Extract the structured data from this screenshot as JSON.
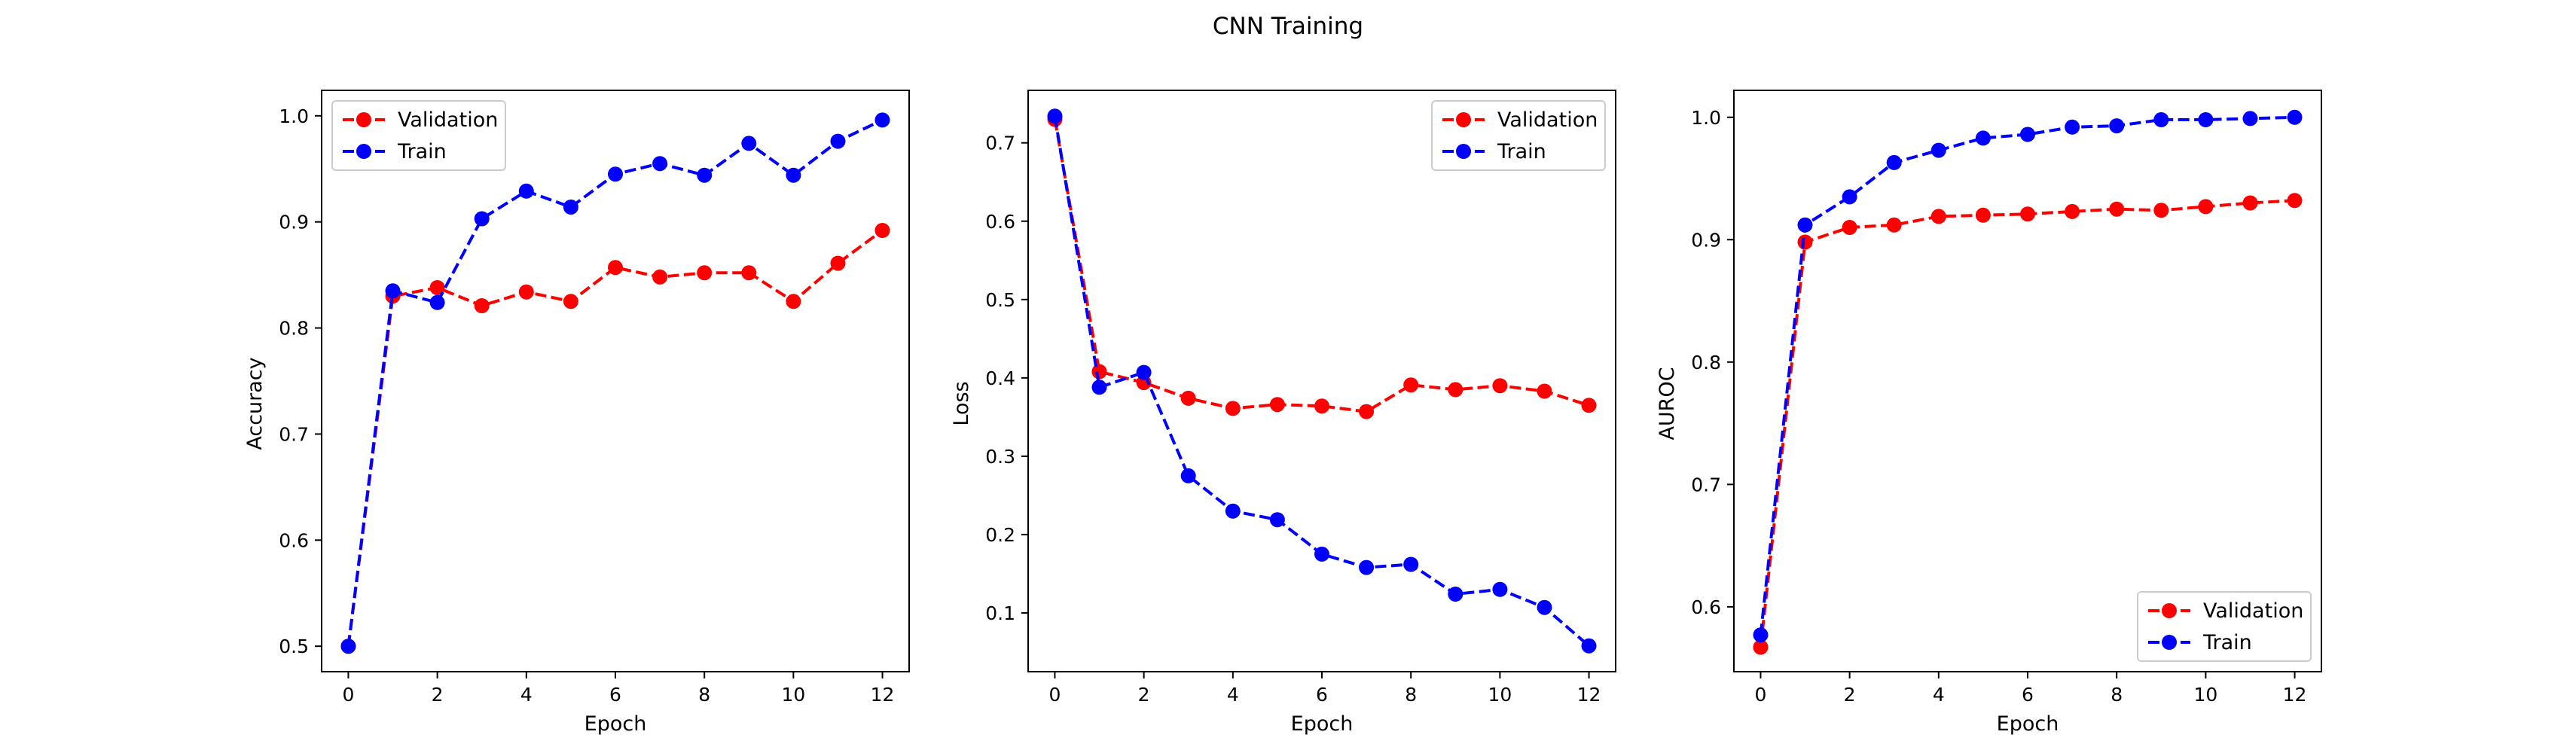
{
  "figure": {
    "title": "CNN Training"
  },
  "chart_data": [
    {
      "type": "line",
      "xlabel": "Epoch",
      "ylabel": "Accuracy",
      "x": [
        0,
        1,
        2,
        3,
        4,
        5,
        6,
        7,
        8,
        9,
        10,
        11,
        12
      ],
      "xlim": [
        -0.6,
        12.6
      ],
      "ylim": [
        0.476,
        1.024
      ],
      "xticks": [
        0,
        2,
        4,
        6,
        8,
        10,
        12
      ],
      "yticks": [
        0.5,
        0.6,
        0.7,
        0.8,
        0.9,
        1.0
      ],
      "yticklabels": [
        "0.5",
        "0.6",
        "0.7",
        "0.8",
        "0.9",
        "1.0"
      ],
      "legend_position": "upper-left",
      "series": [
        {
          "name": "Validation",
          "color": "#ff0000",
          "marker": "circle",
          "linestyle": "dashed",
          "values": [
            0.5,
            0.83,
            0.838,
            0.821,
            0.834,
            0.825,
            0.857,
            0.848,
            0.852,
            0.852,
            0.825,
            0.861,
            0.892
          ]
        },
        {
          "name": "Train",
          "color": "#0000ff",
          "marker": "circle",
          "linestyle": "dashed",
          "values": [
            0.5,
            0.835,
            0.824,
            0.903,
            0.929,
            0.914,
            0.945,
            0.955,
            0.944,
            0.974,
            0.944,
            0.976,
            0.996
          ]
        }
      ]
    },
    {
      "type": "line",
      "xlabel": "Epoch",
      "ylabel": "Loss",
      "x": [
        0,
        1,
        2,
        3,
        4,
        5,
        6,
        7,
        8,
        9,
        10,
        11,
        12
      ],
      "xlim": [
        -0.6,
        12.6
      ],
      "ylim": [
        0.025,
        0.767
      ],
      "xticks": [
        0,
        2,
        4,
        6,
        8,
        10,
        12
      ],
      "yticks": [
        0.1,
        0.2,
        0.3,
        0.4,
        0.5,
        0.6,
        0.7
      ],
      "yticklabels": [
        "0.1",
        "0.2",
        "0.3",
        "0.4",
        "0.5",
        "0.6",
        "0.7"
      ],
      "legend_position": "upper-right",
      "series": [
        {
          "name": "Validation",
          "color": "#ff0000",
          "marker": "circle",
          "linestyle": "dashed",
          "values": [
            0.73,
            0.408,
            0.394,
            0.374,
            0.361,
            0.366,
            0.364,
            0.357,
            0.391,
            0.385,
            0.39,
            0.383,
            0.365
          ]
        },
        {
          "name": "Train",
          "color": "#0000ff",
          "marker": "circle",
          "linestyle": "dashed",
          "values": [
            0.734,
            0.388,
            0.407,
            0.275,
            0.23,
            0.219,
            0.175,
            0.158,
            0.162,
            0.124,
            0.13,
            0.107,
            0.058
          ]
        }
      ]
    },
    {
      "type": "line",
      "xlabel": "Epoch",
      "ylabel": "AUROC",
      "x": [
        0,
        1,
        2,
        3,
        4,
        5,
        6,
        7,
        8,
        9,
        10,
        11,
        12
      ],
      "xlim": [
        -0.6,
        12.6
      ],
      "ylim": [
        0.547,
        1.022
      ],
      "xticks": [
        0,
        2,
        4,
        6,
        8,
        10,
        12
      ],
      "yticks": [
        0.6,
        0.7,
        0.8,
        0.9,
        1.0
      ],
      "yticklabels": [
        "0.6",
        "0.7",
        "0.8",
        "0.9",
        "1.0"
      ],
      "legend_position": "lower-right",
      "series": [
        {
          "name": "Validation",
          "color": "#ff0000",
          "marker": "circle",
          "linestyle": "dashed",
          "values": [
            0.567,
            0.898,
            0.91,
            0.912,
            0.919,
            0.92,
            0.921,
            0.923,
            0.925,
            0.924,
            0.927,
            0.93,
            0.932
          ]
        },
        {
          "name": "Train",
          "color": "#0000ff",
          "marker": "circle",
          "linestyle": "dashed",
          "values": [
            0.577,
            0.912,
            0.935,
            0.963,
            0.973,
            0.983,
            0.986,
            0.992,
            0.993,
            0.998,
            0.998,
            0.999,
            1.0
          ]
        }
      ]
    }
  ]
}
